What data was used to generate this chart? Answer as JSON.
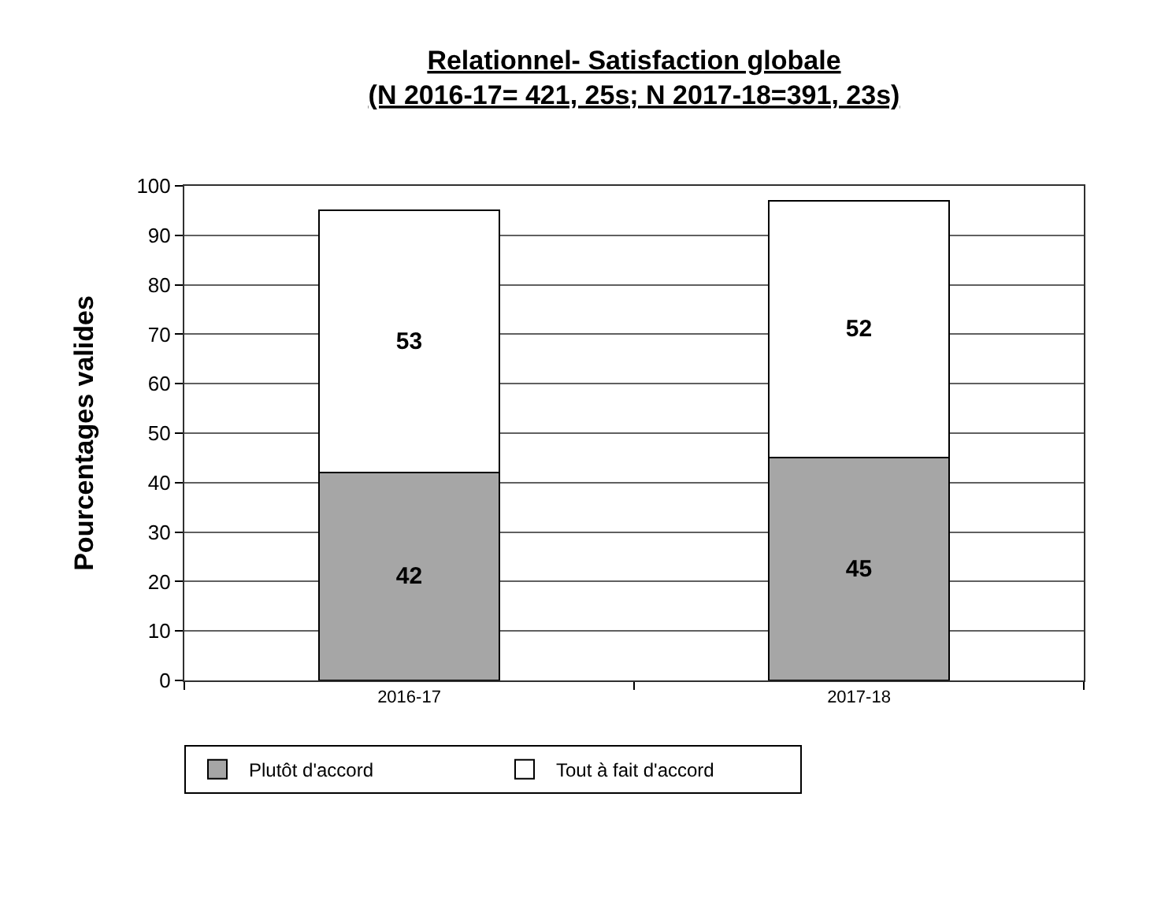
{
  "chart_data": {
    "type": "bar",
    "title": "Relationnel- Satisfaction globale\n(N 2016-17= 421, 25s; N 2017-18=391, 23s)",
    "ylabel": "Pourcentages valides",
    "categories": [
      "2016-17",
      "2017-18"
    ],
    "series": [
      {
        "name": "Plutôt d'accord",
        "color": "#a6a6a6",
        "values": [
          42,
          45
        ]
      },
      {
        "name": "Tout à fait d'accord",
        "color": "#ffffff",
        "values": [
          53,
          52
        ]
      }
    ],
    "stacked": true,
    "data_labels": true,
    "ylim": [
      0,
      100
    ],
    "yticks": [
      0,
      10,
      20,
      30,
      40,
      50,
      60,
      70,
      80,
      90,
      100
    ],
    "grid": "y",
    "legend": "bottom"
  }
}
